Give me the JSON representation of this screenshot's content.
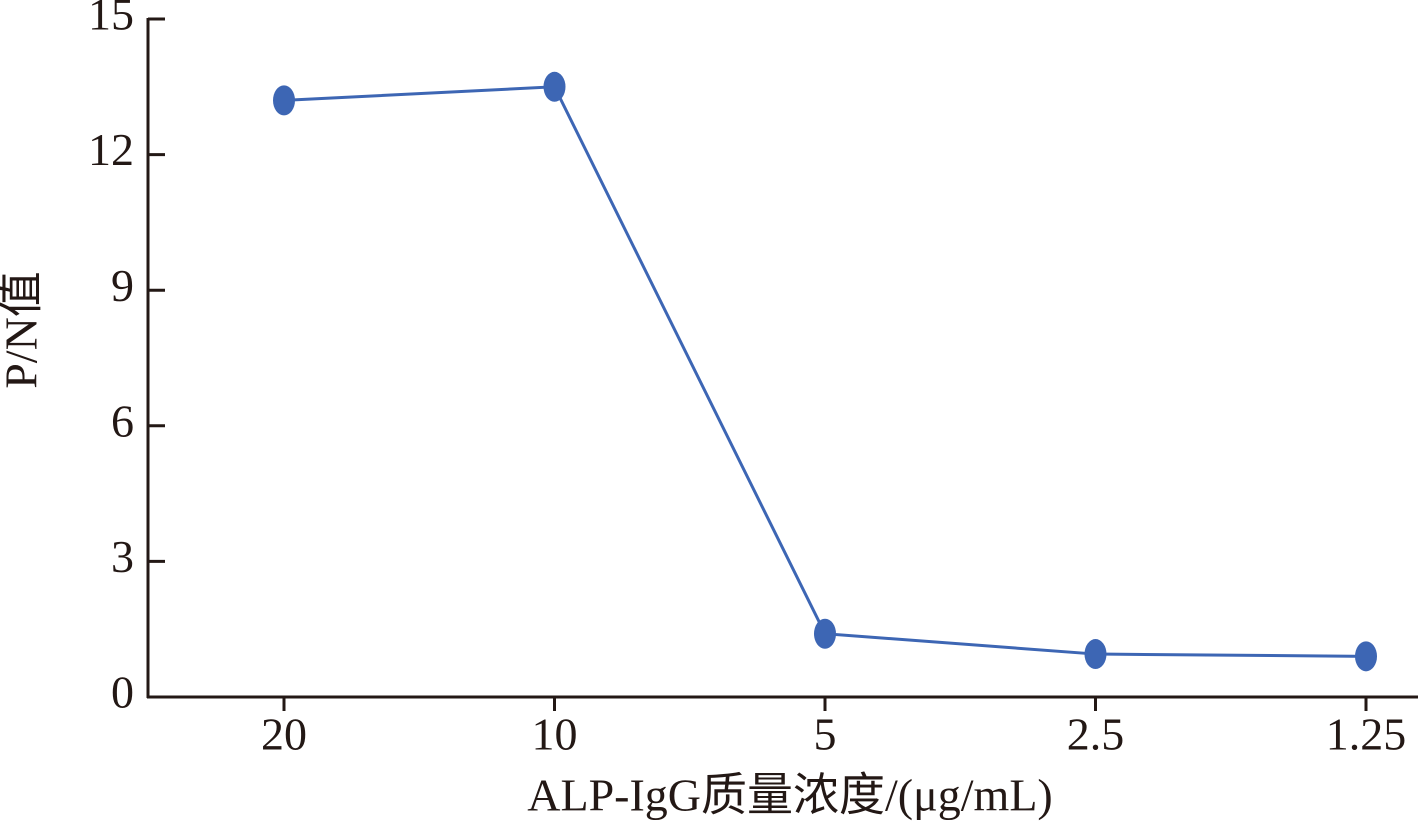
{
  "chart_data": {
    "type": "line",
    "x_label": "ALP-IgG质量浓度/(μg/mL)",
    "y_label": "P/N值",
    "categories": [
      "20",
      "10",
      "5",
      "2.5",
      "1.25"
    ],
    "series": [
      {
        "name": "P/N",
        "color": "#3d66b4",
        "values": [
          13.2,
          13.5,
          1.4,
          0.95,
          0.9
        ]
      }
    ],
    "ylim": [
      0,
      15
    ],
    "yticks": [
      0,
      3,
      6,
      9,
      12,
      15
    ]
  }
}
